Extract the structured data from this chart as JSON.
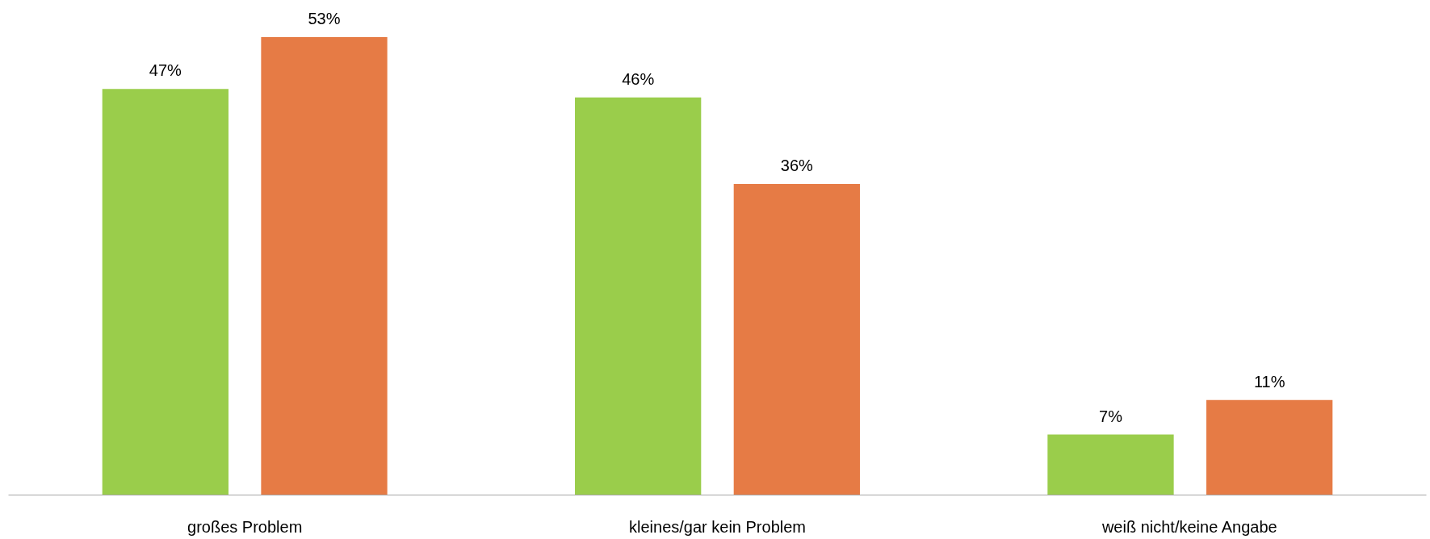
{
  "chart_data": {
    "type": "bar",
    "categories": [
      "großes Problem",
      "kleines/gar kein Problem",
      "weiß nicht/keine Angabe"
    ],
    "series": [
      {
        "color": "#9acd4b",
        "values": [
          47,
          46,
          7
        ],
        "value_labels": [
          "47%",
          "46%",
          "7%"
        ]
      },
      {
        "color": "#e67b45",
        "values": [
          53,
          36,
          11
        ],
        "value_labels": [
          "53%",
          "36%",
          "11%"
        ]
      }
    ]
  }
}
